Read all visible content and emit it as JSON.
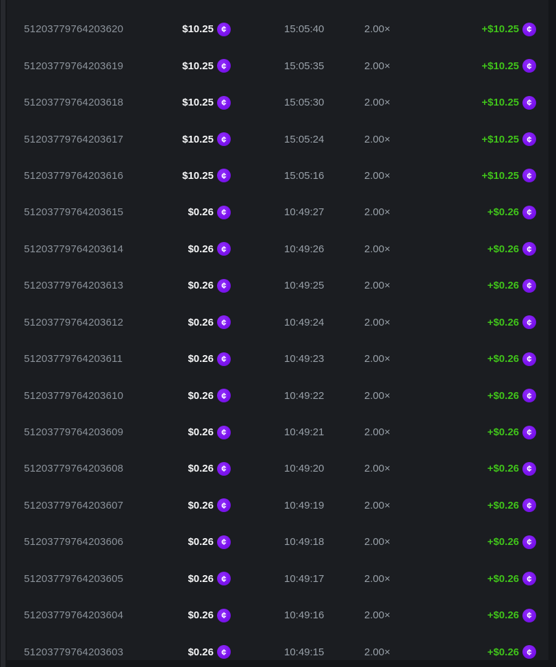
{
  "theme": {
    "page_bg": "#141619",
    "panel_bg": "#1b1d21",
    "scrollbar_color": "#27292e",
    "id_color": "#8d949c",
    "muted_color": "#99a1a9",
    "amount_color": "#f4f5f6",
    "win_color": "#40c41a",
    "coin_color": "#7d15f0"
  },
  "coin": {
    "icon": "cent-coin-icon",
    "glyph": "¢"
  },
  "bets_table": {
    "rows": [
      {
        "id": "51203779764203620",
        "bet": "$10.25",
        "time": "15:05:40",
        "multiplier": "2.00×",
        "payout": "+$10.25"
      },
      {
        "id": "51203779764203619",
        "bet": "$10.25",
        "time": "15:05:35",
        "multiplier": "2.00×",
        "payout": "+$10.25"
      },
      {
        "id": "51203779764203618",
        "bet": "$10.25",
        "time": "15:05:30",
        "multiplier": "2.00×",
        "payout": "+$10.25"
      },
      {
        "id": "51203779764203617",
        "bet": "$10.25",
        "time": "15:05:24",
        "multiplier": "2.00×",
        "payout": "+$10.25"
      },
      {
        "id": "51203779764203616",
        "bet": "$10.25",
        "time": "15:05:16",
        "multiplier": "2.00×",
        "payout": "+$10.25"
      },
      {
        "id": "51203779764203615",
        "bet": "$0.26",
        "time": "10:49:27",
        "multiplier": "2.00×",
        "payout": "+$0.26"
      },
      {
        "id": "51203779764203614",
        "bet": "$0.26",
        "time": "10:49:26",
        "multiplier": "2.00×",
        "payout": "+$0.26"
      },
      {
        "id": "51203779764203613",
        "bet": "$0.26",
        "time": "10:49:25",
        "multiplier": "2.00×",
        "payout": "+$0.26"
      },
      {
        "id": "51203779764203612",
        "bet": "$0.26",
        "time": "10:49:24",
        "multiplier": "2.00×",
        "payout": "+$0.26"
      },
      {
        "id": "51203779764203611",
        "bet": "$0.26",
        "time": "10:49:23",
        "multiplier": "2.00×",
        "payout": "+$0.26"
      },
      {
        "id": "51203779764203610",
        "bet": "$0.26",
        "time": "10:49:22",
        "multiplier": "2.00×",
        "payout": "+$0.26"
      },
      {
        "id": "51203779764203609",
        "bet": "$0.26",
        "time": "10:49:21",
        "multiplier": "2.00×",
        "payout": "+$0.26"
      },
      {
        "id": "51203779764203608",
        "bet": "$0.26",
        "time": "10:49:20",
        "multiplier": "2.00×",
        "payout": "+$0.26"
      },
      {
        "id": "51203779764203607",
        "bet": "$0.26",
        "time": "10:49:19",
        "multiplier": "2.00×",
        "payout": "+$0.26"
      },
      {
        "id": "51203779764203606",
        "bet": "$0.26",
        "time": "10:49:18",
        "multiplier": "2.00×",
        "payout": "+$0.26"
      },
      {
        "id": "51203779764203605",
        "bet": "$0.26",
        "time": "10:49:17",
        "multiplier": "2.00×",
        "payout": "+$0.26"
      },
      {
        "id": "51203779764203604",
        "bet": "$0.26",
        "time": "10:49:16",
        "multiplier": "2.00×",
        "payout": "+$0.26"
      },
      {
        "id": "51203779764203603",
        "bet": "$0.26",
        "time": "10:49:15",
        "multiplier": "2.00×",
        "payout": "+$0.26"
      }
    ]
  }
}
